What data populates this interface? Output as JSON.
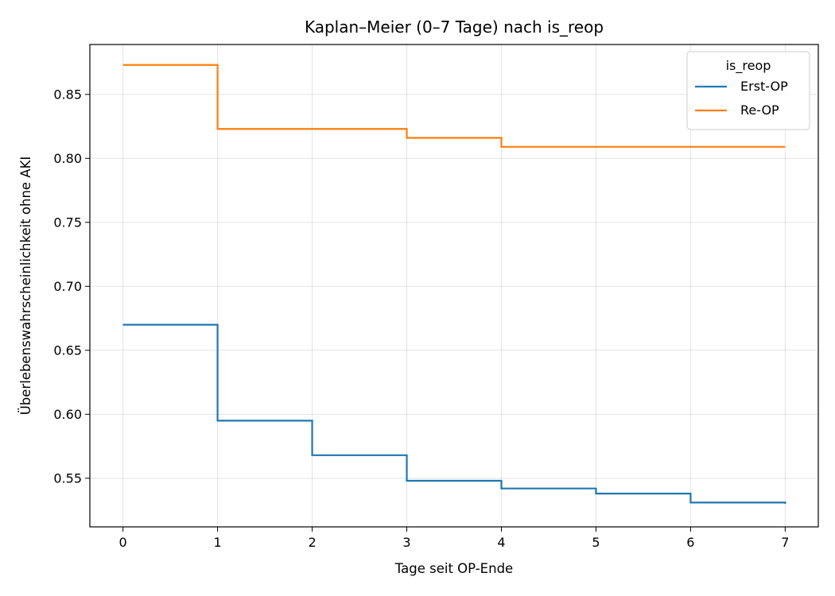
{
  "chart_data": {
    "type": "line",
    "step": "post",
    "title": "Kaplan–Meier (0–7 Tage) nach is_reop",
    "xlabel": "Tage seit OP-Ende",
    "ylabel": "Überlebenswahrscheinlichkeit ohne AKI",
    "xlim": [
      -0.35,
      7.35
    ],
    "ylim": [
      0.512,
      0.889
    ],
    "xticks": [
      0,
      1,
      2,
      3,
      4,
      5,
      6,
      7
    ],
    "yticks": [
      0.55,
      0.6,
      0.65,
      0.7,
      0.75,
      0.8,
      0.85
    ],
    "ytick_labels": [
      "0.55",
      "0.60",
      "0.65",
      "0.70",
      "0.75",
      "0.80",
      "0.85"
    ],
    "grid": true,
    "legend": {
      "title": "is_reop",
      "position": "top-right"
    },
    "series": [
      {
        "name": "Erst-OP",
        "color": "#1f77b4",
        "x": [
          0,
          1,
          2,
          3,
          4,
          5,
          6,
          7
        ],
        "y": [
          0.67,
          0.595,
          0.568,
          0.548,
          0.542,
          0.538,
          0.531,
          0.53
        ]
      },
      {
        "name": "Re-OP",
        "color": "#ff7f0e",
        "x": [
          0,
          1,
          2,
          3,
          4,
          5,
          6,
          7
        ],
        "y": [
          0.873,
          0.823,
          0.823,
          0.816,
          0.809,
          0.809,
          0.809,
          0.809
        ]
      }
    ]
  }
}
